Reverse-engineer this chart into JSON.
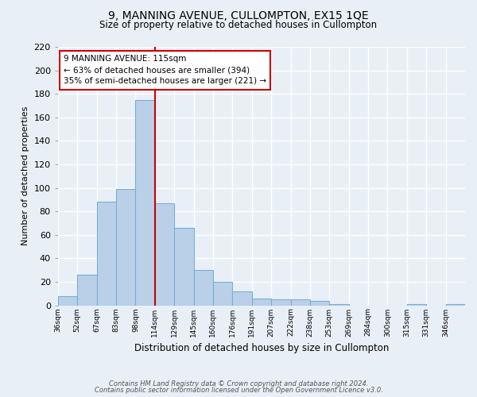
{
  "title": "9, MANNING AVENUE, CULLOMPTON, EX15 1QE",
  "subtitle": "Size of property relative to detached houses in Cullompton",
  "xlabel": "Distribution of detached houses by size in Cullompton",
  "ylabel": "Number of detached properties",
  "bin_labels": [
    "36sqm",
    "52sqm",
    "67sqm",
    "83sqm",
    "98sqm",
    "114sqm",
    "129sqm",
    "145sqm",
    "160sqm",
    "176sqm",
    "191sqm",
    "207sqm",
    "222sqm",
    "238sqm",
    "253sqm",
    "269sqm",
    "284sqm",
    "300sqm",
    "315sqm",
    "331sqm",
    "346sqm"
  ],
  "bar_heights": [
    8,
    26,
    88,
    99,
    175,
    87,
    66,
    30,
    20,
    12,
    6,
    5,
    5,
    4,
    1,
    0,
    0,
    0,
    1,
    0,
    1
  ],
  "bar_color": "#bad0e8",
  "bar_edge_color": "#7aadd4",
  "property_line_index": 5,
  "property_line_color": "#cc0000",
  "ylim": [
    0,
    220
  ],
  "yticks": [
    0,
    20,
    40,
    60,
    80,
    100,
    120,
    140,
    160,
    180,
    200,
    220
  ],
  "annotation_title": "9 MANNING AVENUE: 115sqm",
  "annotation_line1": "← 63% of detached houses are smaller (394)",
  "annotation_line2": "35% of semi-detached houses are larger (221) →",
  "annotation_box_color": "#ffffff",
  "annotation_box_edge": "#cc0000",
  "background_color": "#e8eff7",
  "footer1": "Contains HM Land Registry data © Crown copyright and database right 2024.",
  "footer2": "Contains public sector information licensed under the Open Government Licence v3.0."
}
